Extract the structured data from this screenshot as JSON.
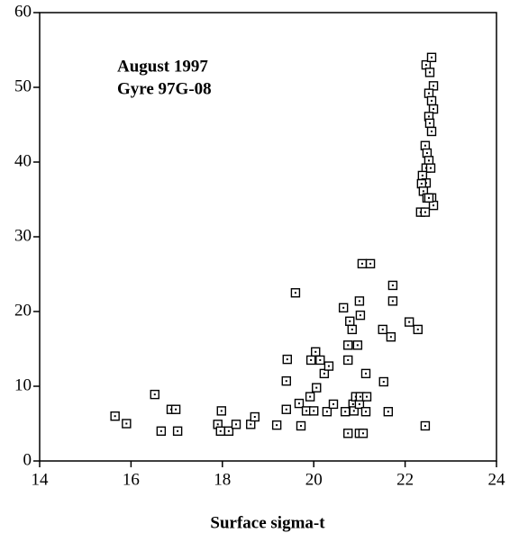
{
  "chart_data": {
    "type": "scatter",
    "annotation": [
      "August 1997",
      "Gyre 97G-08"
    ],
    "x_label": "Surface sigma-t",
    "xlim": [
      14,
      24
    ],
    "ylim": [
      0,
      60
    ],
    "xticks": [
      14,
      16,
      18,
      20,
      22,
      24
    ],
    "yticks": [
      0,
      10,
      20,
      30,
      40,
      50,
      60
    ],
    "color": "#000000",
    "x": [
      15.65,
      15.9,
      16.52,
      16.66,
      16.88,
      16.98,
      17.02,
      17.9,
      17.98,
      17.96,
      18.14,
      18.3,
      18.62,
      18.71,
      19.19,
      19.4,
      19.4,
      19.42,
      19.6,
      19.68,
      19.72,
      19.84,
      19.92,
      19.94,
      20.04,
      20.0,
      20.06,
      20.14,
      20.23,
      20.33,
      20.29,
      20.43,
      20.65,
      20.69,
      20.75,
      20.75,
      20.75,
      20.79,
      20.84,
      20.86,
      20.88,
      20.92,
      20.96,
      21.0,
      21.02,
      21.0,
      21.02,
      21.0,
      21.08,
      21.06,
      21.24,
      21.14,
      21.16,
      21.14,
      21.51,
      21.53,
      21.63,
      21.69,
      21.73,
      21.73,
      22.09,
      22.28,
      22.44,
      22.46,
      22.58,
      22.54,
      22.62,
      22.52,
      22.58,
      22.62,
      22.52,
      22.54,
      22.58,
      22.44,
      22.48,
      22.52,
      22.46,
      22.56,
      22.38,
      22.46,
      22.36,
      22.4,
      22.48,
      22.58,
      22.62,
      22.34,
      22.44,
      22.52
    ],
    "y": [
      6,
      5,
      8.9,
      4,
      6.9,
      6.9,
      4,
      4.9,
      6.7,
      4,
      4,
      4.9,
      4.9,
      5.9,
      4.8,
      6.9,
      10.7,
      13.6,
      22.5,
      7.7,
      4.7,
      6.7,
      8.6,
      13.5,
      14.6,
      6.7,
      9.8,
      13.5,
      11.7,
      12.7,
      6.6,
      7.6,
      20.5,
      6.6,
      3.7,
      15.5,
      13.5,
      18.7,
      17.6,
      7.6,
      6.7,
      8.6,
      15.5,
      21.4,
      19.5,
      7.6,
      8.6,
      3.7,
      3.7,
      26.4,
      26.4,
      11.7,
      8.6,
      6.6,
      17.6,
      10.6,
      6.6,
      16.6,
      23.5,
      21.4,
      18.6,
      17.6,
      4.7,
      53,
      54,
      52,
      50.2,
      49.2,
      48.2,
      47.1,
      46.1,
      45.2,
      44.1,
      42.2,
      41.2,
      40.2,
      39.2,
      39.2,
      38.2,
      37.2,
      37.1,
      36.1,
      35.2,
      35.2,
      34.2,
      33.3,
      33.3,
      35.2
    ]
  }
}
